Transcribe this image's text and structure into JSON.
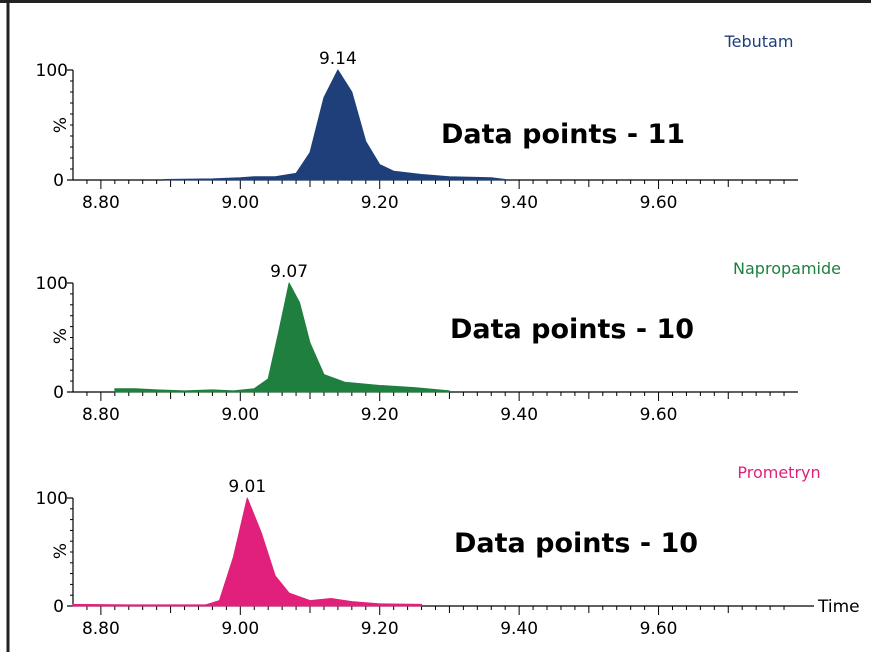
{
  "chart_data": [
    {
      "type": "area",
      "series": [
        {
          "name": "Tebutam",
          "color": "#1f3f7a",
          "points": [
            [
              8.89,
              0.5
            ],
            [
              8.96,
              1
            ],
            [
              9.0,
              2
            ],
            [
              9.02,
              3
            ],
            [
              9.05,
              3
            ],
            [
              9.08,
              6
            ],
            [
              9.1,
              25
            ],
            [
              9.12,
              75
            ],
            [
              9.14,
              100
            ],
            [
              9.16,
              80
            ],
            [
              9.18,
              35
            ],
            [
              9.2,
              14
            ],
            [
              9.22,
              8
            ],
            [
              9.26,
              5
            ],
            [
              9.3,
              3
            ],
            [
              9.36,
              2
            ],
            [
              9.38,
              0.5
            ]
          ]
        }
      ],
      "peak_label": {
        "x": 9.14,
        "text": "9.14"
      },
      "annotation": "Data points - 11",
      "ylabel": "%",
      "y_tick_labels": [
        "100",
        "0"
      ],
      "ylim": [
        0,
        100
      ],
      "xlim": [
        8.76,
        9.79
      ],
      "x_tick_labels": [
        "8.80",
        "9.00",
        "9.20",
        "9.40",
        "9.60"
      ]
    },
    {
      "type": "area",
      "series": [
        {
          "name": "Napropamide",
          "color": "#1f7f3f",
          "points": [
            [
              8.82,
              3
            ],
            [
              8.85,
              3
            ],
            [
              8.88,
              2
            ],
            [
              8.92,
              1
            ],
            [
              8.96,
              2
            ],
            [
              8.99,
              1
            ],
            [
              9.02,
              3
            ],
            [
              9.04,
              12
            ],
            [
              9.055,
              55
            ],
            [
              9.07,
              100
            ],
            [
              9.085,
              82
            ],
            [
              9.1,
              45
            ],
            [
              9.12,
              16
            ],
            [
              9.15,
              9
            ],
            [
              9.2,
              6
            ],
            [
              9.25,
              4
            ],
            [
              9.3,
              1
            ]
          ]
        }
      ],
      "peak_label": {
        "x": 9.07,
        "text": "9.07"
      },
      "annotation": "Data points - 10",
      "ylabel": "%",
      "y_tick_labels": [
        "100",
        "0"
      ],
      "ylim": [
        0,
        100
      ],
      "xlim": [
        8.76,
        9.79
      ],
      "x_tick_labels": [
        "8.80",
        "9.00",
        "9.20",
        "9.40",
        "9.60"
      ]
    },
    {
      "type": "area",
      "series": [
        {
          "name": "Prometryn",
          "color": "#e0207a",
          "points": [
            [
              8.76,
              1.5
            ],
            [
              8.85,
              1
            ],
            [
              8.95,
              1
            ],
            [
              8.97,
              5
            ],
            [
              8.99,
              45
            ],
            [
              9.01,
              100
            ],
            [
              9.03,
              68
            ],
            [
              9.05,
              28
            ],
            [
              9.07,
              12
            ],
            [
              9.1,
              5
            ],
            [
              9.13,
              7
            ],
            [
              9.16,
              4
            ],
            [
              9.2,
              2
            ],
            [
              9.26,
              1.5
            ]
          ]
        }
      ],
      "peak_label": {
        "x": 9.01,
        "text": "9.01"
      },
      "annotation": "Data points - 10",
      "ylabel": "%",
      "y_tick_labels": [
        "100",
        "0"
      ],
      "ylim": [
        0,
        100
      ],
      "xlim": [
        8.76,
        9.79
      ],
      "x_tick_labels": [
        "8.80",
        "9.00",
        "9.20",
        "9.40",
        "9.60"
      ],
      "xlabel": "Time"
    }
  ]
}
